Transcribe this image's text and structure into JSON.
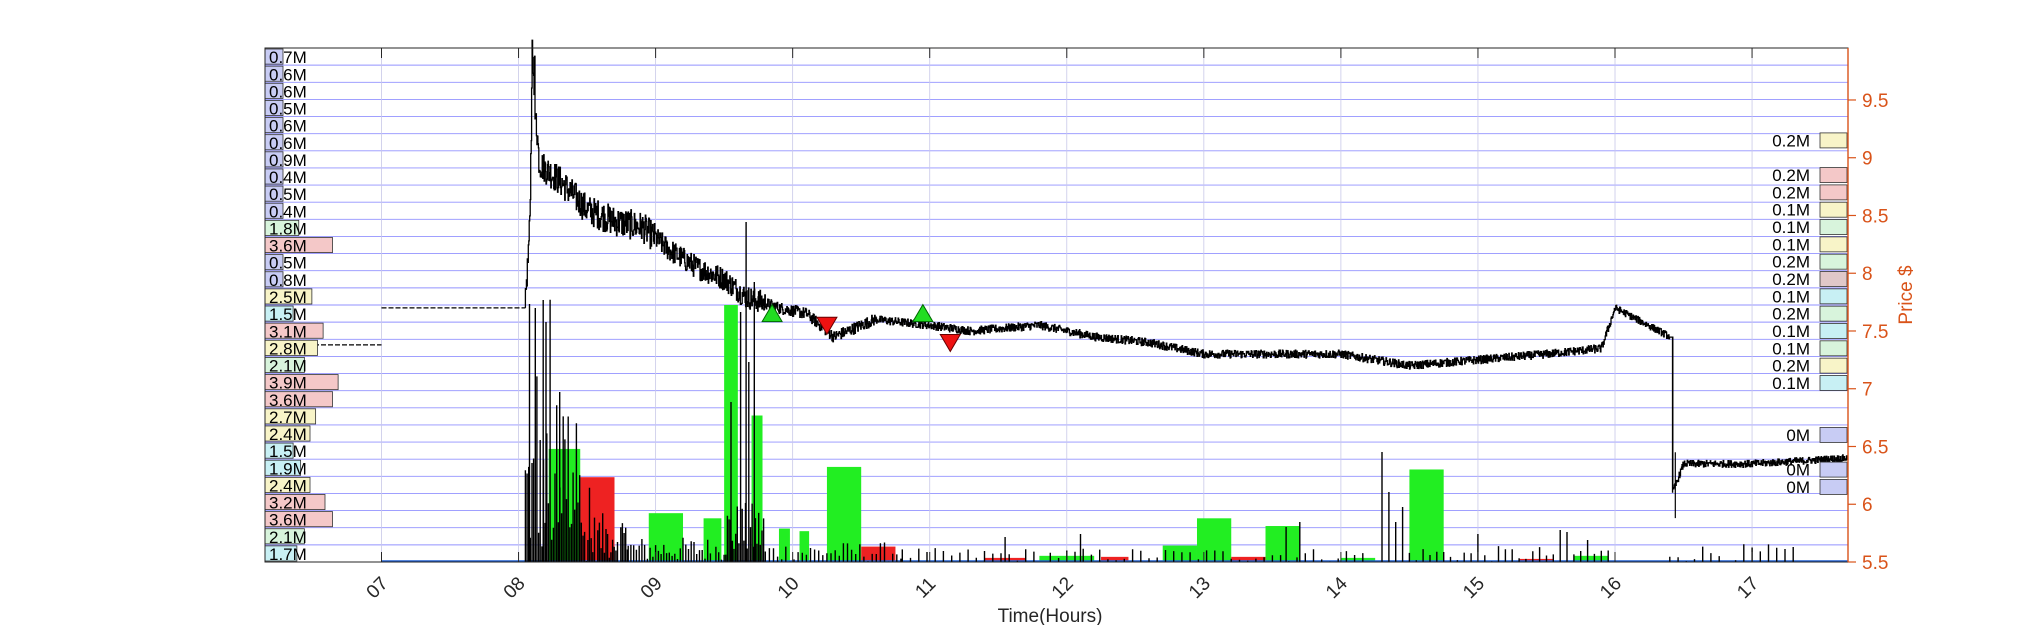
{
  "chart_data": {
    "type": "line",
    "title": "",
    "xlabel": "Time(Hours)",
    "ylabel": "Price $",
    "xlim": [
      6.15,
      17.7
    ],
    "ylim": [
      5.5,
      9.95
    ],
    "x_ticks": [
      7,
      8,
      9,
      10,
      11,
      12,
      13,
      14,
      15,
      16,
      17
    ],
    "x_tick_labels": [
      "07",
      "08",
      "09",
      "10",
      "11",
      "12",
      "13",
      "14",
      "15",
      "16",
      "17"
    ],
    "y_ticks": [
      5.5,
      6,
      6.5,
      7,
      7.5,
      8,
      8.5,
      9,
      9.5
    ],
    "y_tick_labels": [
      "5.5",
      "6",
      "6.5",
      "7",
      "7.5",
      "8",
      "8.5",
      "9",
      "9.5"
    ],
    "colors": {
      "price_line": "#000000",
      "right_axis": "#d95319",
      "grid_band": "#8080ff",
      "buy_volume": "#22ee22",
      "sell_volume": "#ee2222",
      "buy_marker": "#22dd22",
      "sell_marker": "#ee1111"
    },
    "price_anchors": [
      [
        7.0,
        7.7
      ],
      [
        8.0,
        7.7
      ],
      [
        8.05,
        7.75
      ],
      [
        8.08,
        8.4
      ],
      [
        8.1,
        9.8
      ],
      [
        8.15,
        8.95
      ],
      [
        8.3,
        8.8
      ],
      [
        8.5,
        8.55
      ],
      [
        8.7,
        8.45
      ],
      [
        8.9,
        8.4
      ],
      [
        9.1,
        8.2
      ],
      [
        9.3,
        8.05
      ],
      [
        9.5,
        7.95
      ],
      [
        9.65,
        7.8
      ],
      [
        9.9,
        7.7
      ],
      [
        10.1,
        7.65
      ],
      [
        10.3,
        7.45
      ],
      [
        10.6,
        7.6
      ],
      [
        11.0,
        7.55
      ],
      [
        11.3,
        7.5
      ],
      [
        11.8,
        7.55
      ],
      [
        12.2,
        7.45
      ],
      [
        12.6,
        7.4
      ],
      [
        13.0,
        7.3
      ],
      [
        13.5,
        7.3
      ],
      [
        14.0,
        7.3
      ],
      [
        14.5,
        7.2
      ],
      [
        15.0,
        7.25
      ],
      [
        15.5,
        7.3
      ],
      [
        15.9,
        7.35
      ],
      [
        16.0,
        7.7
      ],
      [
        16.4,
        7.45
      ],
      [
        16.42,
        6.1
      ],
      [
        16.5,
        6.35
      ],
      [
        17.0,
        6.35
      ],
      [
        17.7,
        6.4
      ]
    ],
    "pre_market_line": [
      [
        6.15,
        7.38
      ],
      [
        7.0,
        7.38
      ]
    ],
    "buy_markers": [
      [
        9.85,
        7.65
      ],
      [
        10.95,
        7.65
      ]
    ],
    "sell_markers": [
      [
        10.25,
        7.55
      ],
      [
        11.15,
        7.4
      ]
    ],
    "volume_bars": [
      {
        "side": "buy",
        "x0": 8.22,
        "x1": 8.45,
        "height": 0.22
      },
      {
        "side": "sell",
        "x0": 8.45,
        "x1": 8.7,
        "height": 0.165
      },
      {
        "side": "buy",
        "x0": 8.95,
        "x1": 9.2,
        "height": 0.095
      },
      {
        "side": "buy",
        "x0": 9.35,
        "x1": 9.48,
        "height": 0.085
      },
      {
        "side": "buy",
        "x0": 9.5,
        "x1": 9.6,
        "height": 0.5
      },
      {
        "side": "buy",
        "x0": 9.7,
        "x1": 9.78,
        "height": 0.285
      },
      {
        "side": "buy",
        "x0": 9.9,
        "x1": 9.98,
        "height": 0.065
      },
      {
        "side": "buy",
        "x0": 10.05,
        "x1": 10.12,
        "height": 0.06
      },
      {
        "side": "buy",
        "x0": 10.25,
        "x1": 10.5,
        "height": 0.185
      },
      {
        "side": "sell",
        "x0": 10.5,
        "x1": 10.75,
        "height": 0.03
      },
      {
        "side": "sell",
        "x0": 11.4,
        "x1": 11.7,
        "height": 0.008
      },
      {
        "side": "buy",
        "x0": 11.8,
        "x1": 12.2,
        "height": 0.012
      },
      {
        "side": "sell",
        "x0": 12.25,
        "x1": 12.45,
        "height": 0.01
      },
      {
        "side": "buy",
        "x0": 12.7,
        "x1": 12.95,
        "height": 0.032
      },
      {
        "side": "buy",
        "x0": 12.95,
        "x1": 13.2,
        "height": 0.085
      },
      {
        "side": "sell",
        "x0": 13.2,
        "x1": 13.45,
        "height": 0.01
      },
      {
        "side": "buy",
        "x0": 13.45,
        "x1": 13.7,
        "height": 0.07
      },
      {
        "side": "buy",
        "x0": 14.0,
        "x1": 14.25,
        "height": 0.008
      },
      {
        "side": "buy",
        "x0": 14.5,
        "x1": 14.75,
        "height": 0.18
      },
      {
        "side": "sell",
        "x0": 15.3,
        "x1": 15.55,
        "height": 0.006
      },
      {
        "side": "buy",
        "x0": 15.7,
        "x1": 15.95,
        "height": 0.012
      }
    ],
    "left_volume_profile": [
      {
        "label": "0.7M",
        "value": 0.7
      },
      {
        "label": "0.6M",
        "value": 0.6
      },
      {
        "label": "0.6M",
        "value": 0.6
      },
      {
        "label": "0.5M",
        "value": 0.5
      },
      {
        "label": "0.6M",
        "value": 0.6
      },
      {
        "label": "0.6M",
        "value": 0.6
      },
      {
        "label": "0.9M",
        "value": 0.9
      },
      {
        "label": "0.4M",
        "value": 0.4
      },
      {
        "label": "0.5M",
        "value": 0.5
      },
      {
        "label": "0.4M",
        "value": 0.4
      },
      {
        "label": "1.8M",
        "value": 1.8
      },
      {
        "label": "3.6M",
        "value": 3.6
      },
      {
        "label": "0.5M",
        "value": 0.5
      },
      {
        "label": "0.8M",
        "value": 0.8
      },
      {
        "label": "2.5M",
        "value": 2.5
      },
      {
        "label": "1.5M",
        "value": 1.5
      },
      {
        "label": "3.1M",
        "value": 3.1
      },
      {
        "label": "2.8M",
        "value": 2.8
      },
      {
        "label": "2.1M",
        "value": 2.1
      },
      {
        "label": "3.9M",
        "value": 3.9
      },
      {
        "label": "3.6M",
        "value": 3.6
      },
      {
        "label": "2.7M",
        "value": 2.7
      },
      {
        "label": "2.4M",
        "value": 2.4
      },
      {
        "label": "1.5M",
        "value": 1.5
      },
      {
        "label": "1.9M",
        "value": 1.9
      },
      {
        "label": "2.4M",
        "value": 2.4
      },
      {
        "label": "3.2M",
        "value": 3.2
      },
      {
        "label": "3.6M",
        "value": 3.6
      },
      {
        "label": "2.1M",
        "value": 2.1
      },
      {
        "label": "1.7M",
        "value": 1.7
      }
    ],
    "right_volume_profile": [
      {
        "label": "0.2M",
        "price": 9.15,
        "value": 0.2
      },
      {
        "label": "0.2M",
        "price": 8.85,
        "value": 0.2
      },
      {
        "label": "0.2M",
        "price": 8.7,
        "value": 0.2
      },
      {
        "label": "0.1M",
        "price": 8.55,
        "value": 0.1
      },
      {
        "label": "0.1M",
        "price": 8.4,
        "value": 0.1
      },
      {
        "label": "0.1M",
        "price": 8.25,
        "value": 0.1
      },
      {
        "label": "0.2M",
        "price": 8.1,
        "value": 0.2
      },
      {
        "label": "0.2M",
        "price": 7.95,
        "value": 0.2
      },
      {
        "label": "0.1M",
        "price": 7.8,
        "value": 0.1
      },
      {
        "label": "0.2M",
        "price": 7.65,
        "value": 0.2
      },
      {
        "label": "0.1M",
        "price": 7.5,
        "value": 0.1
      },
      {
        "label": "0.1M",
        "price": 7.35,
        "value": 0.1
      },
      {
        "label": "0.2M",
        "price": 7.2,
        "value": 0.2
      },
      {
        "label": "0.1M",
        "price": 7.05,
        "value": 0.1
      },
      {
        "label": "0M",
        "price": 6.6,
        "value": 0.0
      },
      {
        "label": "0M",
        "price": 6.3,
        "value": 0.0
      },
      {
        "label": "0M",
        "price": 6.15,
        "value": 0.0
      }
    ]
  }
}
